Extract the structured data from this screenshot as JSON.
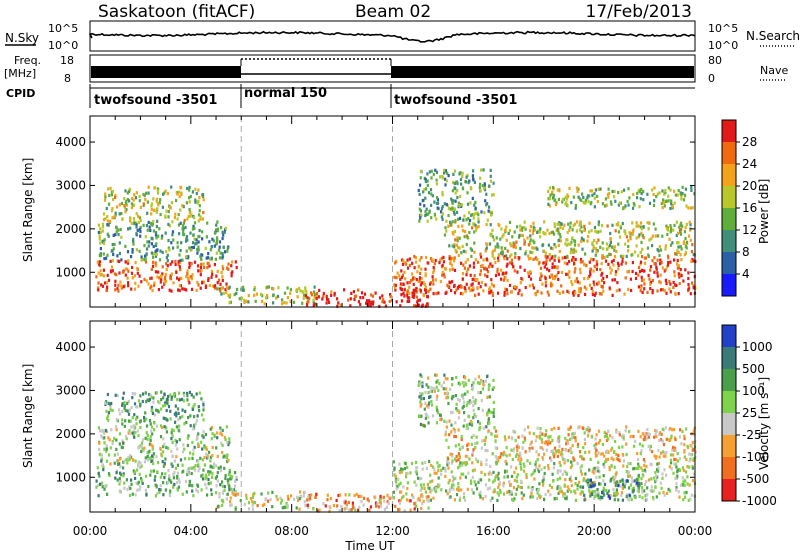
{
  "header": {
    "station": "Saskatoon (fitACF)",
    "beam": "Beam 02",
    "date": "17/Feb/2013"
  },
  "labels": {
    "nsky": "N.Sky",
    "nsearch": "N.Search",
    "freq": "Freq.",
    "freq_unit": "[MHz]",
    "nave": "Nave",
    "cpid": "CPID",
    "noise_ticks_left": [
      "10^5",
      "10^0"
    ],
    "noise_ticks_right": [
      "10^5",
      "10^0"
    ],
    "freq_ticks": [
      "18",
      "8"
    ],
    "nave_ticks": [
      "80",
      "0"
    ]
  },
  "cpid_segments": [
    {
      "label": "twofsound -3501",
      "start": 0,
      "end": 6
    },
    {
      "label": "normal 150",
      "start": 6,
      "end": 12
    },
    {
      "label": "twofsound -3501",
      "start": 12,
      "end": 24
    }
  ],
  "chart_data": [
    {
      "type": "heatmap",
      "name": "power-panel",
      "xlabel": "Time UT",
      "ylabel": "Slant Range [km]",
      "xlim": [
        0,
        24
      ],
      "ylim": [
        200,
        4600
      ],
      "yticks": [
        1000,
        2000,
        3000,
        4000
      ],
      "xticks": [
        "00:00",
        "04:00",
        "08:00",
        "12:00",
        "16:00",
        "20:00",
        "00:00"
      ],
      "colorbar": {
        "label": "Power [dB]",
        "ticks": [
          "4",
          "8",
          "12",
          "16",
          "20",
          "24",
          "28"
        ],
        "colors": [
          "#1a1aff",
          "#2b5fa6",
          "#3f8f7a",
          "#5fae3c",
          "#b8c82a",
          "#f3a21a",
          "#f06a10",
          "#e21a1a"
        ]
      },
      "regions": [
        {
          "t": [
            0.2,
            5.8
          ],
          "r": [
            600,
            1300
          ],
          "level": 0.85
        },
        {
          "t": [
            0.3,
            5.5
          ],
          "r": [
            1300,
            2200
          ],
          "level": 0.35
        },
        {
          "t": [
            0.5,
            4.5
          ],
          "r": [
            2200,
            3000
          ],
          "level": 0.55
        },
        {
          "t": [
            5.0,
            9.0
          ],
          "r": [
            300,
            700
          ],
          "level": 0.5
        },
        {
          "t": [
            8.5,
            13.5
          ],
          "r": [
            250,
            650
          ],
          "level": 0.95
        },
        {
          "t": [
            12.0,
            24.0
          ],
          "r": [
            500,
            1400
          ],
          "level": 0.85
        },
        {
          "t": [
            14.0,
            24.0
          ],
          "r": [
            1400,
            2200
          ],
          "level": 0.55
        },
        {
          "t": [
            13.0,
            16.0
          ],
          "r": [
            2200,
            3400
          ],
          "level": 0.4
        },
        {
          "t": [
            18.0,
            24.0
          ],
          "r": [
            2500,
            3000
          ],
          "level": 0.5
        }
      ]
    },
    {
      "type": "heatmap",
      "name": "velocity-panel",
      "xlabel": "Time UT",
      "ylabel": "Slant Range [km]",
      "xlim": [
        0,
        24
      ],
      "ylim": [
        200,
        4600
      ],
      "yticks": [
        1000,
        2000,
        3000,
        4000
      ],
      "xticks": [
        "00:00",
        "04:00",
        "08:00",
        "12:00",
        "16:00",
        "20:00",
        "00:00"
      ],
      "colorbar": {
        "label": "Velocity [m s⁻¹]",
        "ticks": [
          "1000",
          "500",
          "100",
          "25",
          "-25",
          "-100",
          "-500",
          "-1000"
        ],
        "colors": [
          "#2340c8",
          "#3a7a78",
          "#4aa04a",
          "#7ed34a",
          "#c8c8c8",
          "#f5a030",
          "#f07020",
          "#e82020"
        ]
      },
      "regions": [
        {
          "t": [
            0.2,
            5.8
          ],
          "r": [
            600,
            1300
          ],
          "level": 0.4
        },
        {
          "t": [
            0.3,
            5.5
          ],
          "r": [
            1300,
            2200
          ],
          "level": 0.45
        },
        {
          "t": [
            0.5,
            4.5
          ],
          "r": [
            2200,
            3000
          ],
          "level": 0.35
        },
        {
          "t": [
            5.0,
            9.0
          ],
          "r": [
            300,
            700
          ],
          "level": 0.55
        },
        {
          "t": [
            8.5,
            13.5
          ],
          "r": [
            250,
            650
          ],
          "level": 0.7
        },
        {
          "t": [
            12.0,
            24.0
          ],
          "r": [
            500,
            1400
          ],
          "level": 0.5
        },
        {
          "t": [
            14.0,
            24.0
          ],
          "r": [
            1400,
            2200
          ],
          "level": 0.6
        },
        {
          "t": [
            13.0,
            16.0
          ],
          "r": [
            2200,
            3400
          ],
          "level": 0.45
        },
        {
          "t": [
            19.5,
            22.0
          ],
          "r": [
            500,
            1000
          ],
          "level": 0.25
        }
      ]
    }
  ]
}
